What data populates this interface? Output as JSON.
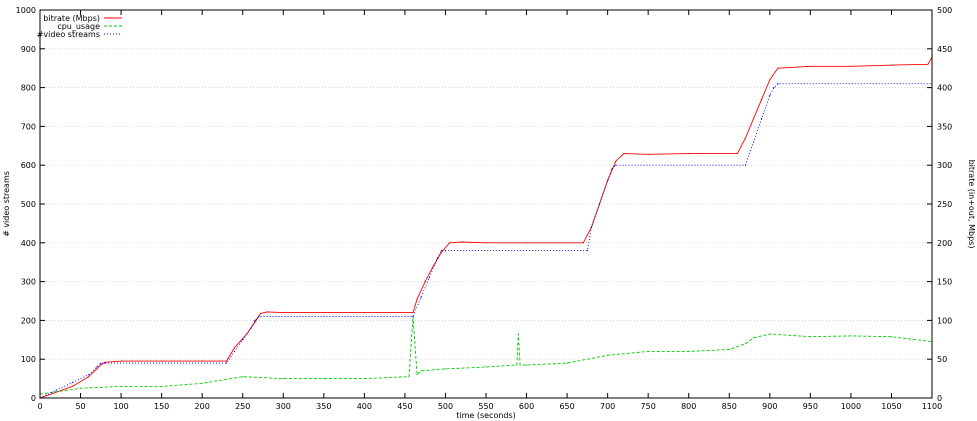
{
  "chart_data": {
    "type": "line",
    "title": "",
    "xlabel": "time (seconds)",
    "ylabel_left": "# video streams",
    "ylabel_right": "bitrate (in+out, Mbps)",
    "xlim": [
      0,
      1100
    ],
    "ylim_left": [
      0,
      1000
    ],
    "ylim_right": [
      0,
      500
    ],
    "x_ticks": [
      "0",
      "50",
      "100",
      "150",
      "200",
      "250",
      "300",
      "350",
      "400",
      "450",
      "500",
      "550",
      "600",
      "650",
      "700",
      "750",
      "800",
      "850",
      "900",
      "950",
      "1000",
      "1050",
      "1100"
    ],
    "y_ticks_left": [
      "0",
      "100",
      "200",
      "300",
      "400",
      "500",
      "600",
      "700",
      "800",
      "900",
      "1000"
    ],
    "y_ticks_right": [
      "0",
      "50",
      "100",
      "150",
      "200",
      "250",
      "300",
      "350",
      "400",
      "450",
      "500"
    ],
    "grid": true,
    "legend_position": "top-left",
    "series": [
      {
        "name": "bitrate (Mbps)",
        "axis": "left",
        "color": "#ff0000",
        "style": "solid",
        "x": [
          0,
          20,
          40,
          60,
          75,
          80,
          100,
          150,
          200,
          230,
          240,
          255,
          265,
          272,
          280,
          300,
          350,
          400,
          460,
          465,
          475,
          485,
          495,
          505,
          520,
          550,
          600,
          670,
          680,
          690,
          700,
          710,
          720,
          750,
          800,
          860,
          870,
          880,
          890,
          900,
          910,
          950,
          1000,
          1050,
          1095,
          1100
        ],
        "values": [
          0,
          15,
          30,
          55,
          85,
          92,
          95,
          95,
          95,
          95,
          130,
          165,
          195,
          218,
          222,
          220,
          220,
          220,
          220,
          255,
          300,
          340,
          375,
          400,
          402,
          400,
          400,
          400,
          440,
          500,
          560,
          610,
          630,
          628,
          630,
          630,
          670,
          720,
          770,
          820,
          850,
          855,
          855,
          858,
          860,
          878
        ]
      },
      {
        "name": "cpu_usage",
        "axis": "left",
        "color": "#00cc00",
        "style": "dashed",
        "x": [
          0,
          50,
          100,
          150,
          200,
          250,
          300,
          350,
          400,
          455,
          460,
          465,
          470,
          500,
          550,
          588,
          590,
          592,
          600,
          650,
          700,
          750,
          800,
          850,
          870,
          880,
          900,
          950,
          1000,
          1050,
          1100
        ],
        "values": [
          10,
          25,
          30,
          30,
          38,
          55,
          50,
          50,
          50,
          55,
          210,
          60,
          70,
          75,
          80,
          85,
          165,
          85,
          85,
          90,
          110,
          120,
          120,
          125,
          140,
          155,
          165,
          158,
          160,
          158,
          145
        ]
      },
      {
        "name": "#video streams",
        "axis": "left",
        "color": "#0000ff",
        "style": "dotted",
        "x": [
          0,
          20,
          40,
          60,
          70,
          75,
          80,
          230,
          240,
          250,
          260,
          265,
          270,
          460,
          470,
          480,
          490,
          495,
          500,
          675,
          680,
          690,
          700,
          705,
          710,
          870,
          880,
          890,
          900,
          905,
          910,
          1100
        ],
        "values": [
          0,
          20,
          40,
          60,
          80,
          90,
          90,
          90,
          120,
          150,
          180,
          200,
          210,
          210,
          260,
          310,
          360,
          380,
          380,
          380,
          440,
          500,
          560,
          590,
          600,
          600,
          660,
          720,
          780,
          800,
          810,
          810
        ]
      }
    ]
  }
}
